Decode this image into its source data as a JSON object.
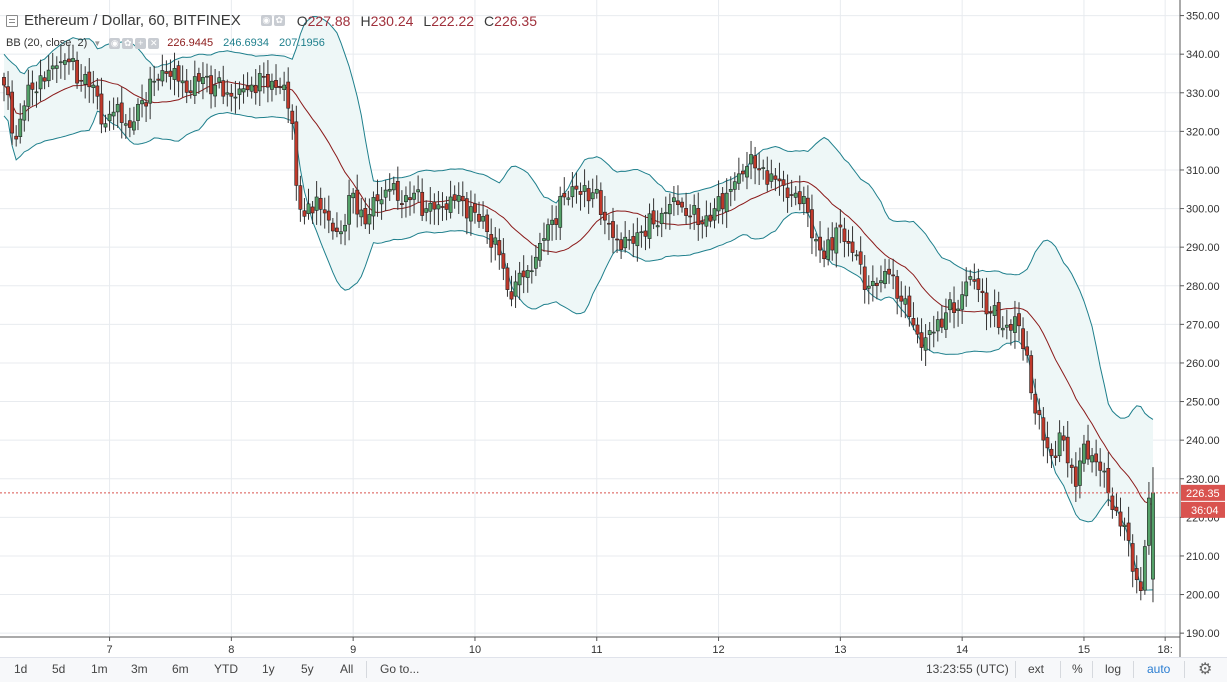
{
  "header": {
    "symbol": "Ethereum / Dollar, 60, BITFINEX",
    "o_label": "O",
    "o_value": "227.88",
    "h_label": "H",
    "h_value": "230.24",
    "l_label": "L",
    "l_value": "222.22",
    "c_label": "C",
    "c_value": "226.35"
  },
  "indicator": {
    "name": "BB (20, close, 2)",
    "basis": "226.9445",
    "upper": "246.6934",
    "lower": "207.1956",
    "colors": {
      "basis": "#8b1a1a",
      "band": "#1e7f8c"
    }
  },
  "price_labels": {
    "last": "226.35",
    "countdown": "36:04"
  },
  "bottom_bar": {
    "timeframes": [
      "1d",
      "5d",
      "1m",
      "3m",
      "6m",
      "YTD",
      "1y",
      "5y",
      "All"
    ],
    "goto": "Go to...",
    "time": "13:23:55 (UTC)",
    "ext": "ext",
    "pct": "%",
    "log": "log",
    "auto": "auto"
  },
  "chart_data": {
    "type": "candlestick",
    "title": "",
    "y_ticks": [
      "190.00",
      "200.00",
      "210.00",
      "220.00",
      "230.00",
      "240.00",
      "250.00",
      "260.00",
      "270.00",
      "280.00",
      "290.00",
      "300.00",
      "310.00",
      "320.00",
      "330.00",
      "340.00",
      "350.00"
    ],
    "ylim": [
      189,
      353
    ],
    "x_ticks": [
      {
        "label": "7",
        "x_index": 26
      },
      {
        "label": "8",
        "x_index": 56
      },
      {
        "label": "9",
        "x_index": 86
      },
      {
        "label": "10",
        "x_index": 116
      },
      {
        "label": "11",
        "x_index": 146
      },
      {
        "label": "12",
        "x_index": 176
      },
      {
        "label": "13",
        "x_index": 206
      },
      {
        "label": "14",
        "x_index": 236
      },
      {
        "label": "15",
        "x_index": 266
      },
      {
        "label": "18:",
        "x_index": 286
      }
    ],
    "colors": {
      "up": "#53a168",
      "down": "#c0392b",
      "wick": "#333333",
      "band_fill": "#eef7f7",
      "last_price": "#d9534f"
    },
    "grid": true,
    "last_price": 226.35,
    "anchors": [
      [
        0,
        332
      ],
      [
        3,
        318
      ],
      [
        6,
        332
      ],
      [
        10,
        333
      ],
      [
        13,
        337
      ],
      [
        16,
        338
      ],
      [
        19,
        333
      ],
      [
        22,
        332
      ],
      [
        25,
        322
      ],
      [
        28,
        327
      ],
      [
        31,
        321
      ],
      [
        34,
        328
      ],
      [
        37,
        333
      ],
      [
        40,
        335
      ],
      [
        43,
        333
      ],
      [
        46,
        330
      ],
      [
        49,
        334
      ],
      [
        52,
        332
      ],
      [
        55,
        330
      ],
      [
        58,
        331
      ],
      [
        61,
        332
      ],
      [
        64,
        334
      ],
      [
        66,
        333
      ],
      [
        69,
        332
      ],
      [
        71,
        322
      ],
      [
        72,
        306
      ],
      [
        74,
        298
      ],
      [
        77,
        303
      ],
      [
        80,
        297
      ],
      [
        83,
        294
      ],
      [
        86,
        304
      ],
      [
        89,
        296
      ],
      [
        92,
        302
      ],
      [
        95,
        305
      ],
      [
        98,
        301
      ],
      [
        101,
        304
      ],
      [
        104,
        300
      ],
      [
        107,
        301
      ],
      [
        110,
        303
      ],
      [
        113,
        302
      ],
      [
        116,
        299
      ],
      [
        119,
        294
      ],
      [
        122,
        288
      ],
      [
        124,
        279
      ],
      [
        126,
        281
      ],
      [
        129,
        284
      ],
      [
        132,
        291
      ],
      [
        135,
        297
      ],
      [
        138,
        303
      ],
      [
        141,
        305
      ],
      [
        144,
        302
      ],
      [
        146,
        305
      ],
      [
        148,
        297
      ],
      [
        151,
        292
      ],
      [
        154,
        292
      ],
      [
        157,
        294
      ],
      [
        160,
        296
      ],
      [
        163,
        299
      ],
      [
        166,
        301
      ],
      [
        169,
        298
      ],
      [
        172,
        296
      ],
      [
        175,
        300
      ],
      [
        178,
        304
      ],
      [
        181,
        309
      ],
      [
        184,
        314
      ],
      [
        186,
        310
      ],
      [
        189,
        309
      ],
      [
        192,
        306
      ],
      [
        195,
        304
      ],
      [
        198,
        299
      ],
      [
        200,
        292
      ],
      [
        202,
        287
      ],
      [
        205,
        295
      ],
      [
        208,
        291
      ],
      [
        210,
        288
      ],
      [
        212,
        279
      ],
      [
        215,
        280
      ],
      [
        218,
        283
      ],
      [
        221,
        276
      ],
      [
        223,
        272
      ],
      [
        226,
        264
      ],
      [
        229,
        268
      ],
      [
        232,
        273
      ],
      [
        235,
        274
      ],
      [
        237,
        281
      ],
      [
        240,
        279
      ],
      [
        243,
        273
      ],
      [
        246,
        269
      ],
      [
        249,
        272
      ],
      [
        252,
        262
      ],
      [
        254,
        247
      ],
      [
        256,
        240
      ],
      [
        258,
        236
      ],
      [
        261,
        240
      ],
      [
        264,
        228
      ],
      [
        266,
        239
      ],
      [
        268,
        236
      ],
      [
        271,
        232
      ],
      [
        273,
        222
      ],
      [
        276,
        218
      ],
      [
        278,
        206
      ],
      [
        280,
        201
      ],
      [
        282,
        225
      ],
      [
        283,
        226.35
      ]
    ]
  }
}
